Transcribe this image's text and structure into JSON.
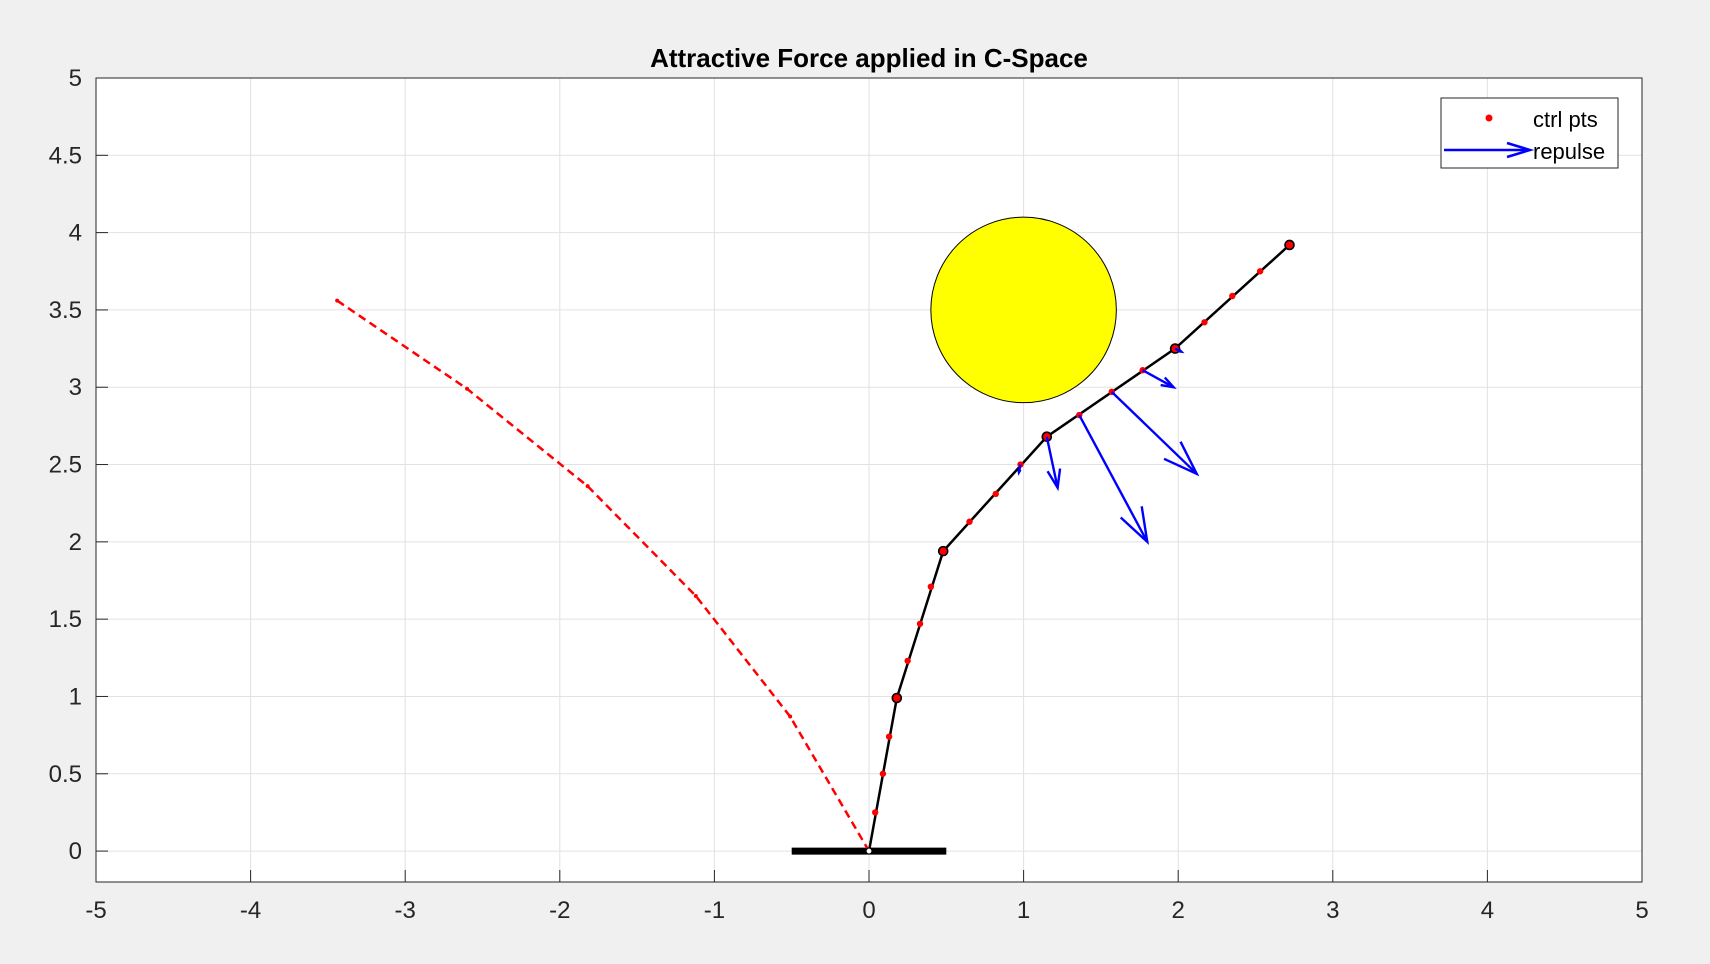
{
  "chart_data": {
    "type": "line",
    "title": "Attractive Force applied in C-Space",
    "xlabel": "",
    "ylabel": "",
    "xlim": [
      -5,
      5
    ],
    "ylim": [
      -0.2,
      5
    ],
    "xticks": [
      -5,
      -4,
      -3,
      -2,
      -1,
      0,
      1,
      2,
      3,
      4,
      5
    ],
    "yticks": [
      0,
      0.5,
      1,
      1.5,
      2,
      2.5,
      3,
      3.5,
      4,
      4.5,
      5
    ],
    "xtick_labels": [
      "-5",
      "-4",
      "-3",
      "-2",
      "-1",
      "0",
      "1",
      "2",
      "3",
      "4",
      "5"
    ],
    "ytick_labels": [
      "0",
      "0.5",
      "1",
      "1.5",
      "2",
      "2.5",
      "3",
      "3.5",
      "4",
      "4.5",
      "5"
    ],
    "grid": true,
    "legend_position": "top-right",
    "legend": [
      {
        "label": "ctrl pts",
        "marker": "dot",
        "color": "#ff0000"
      },
      {
        "label": "repulse",
        "marker": "arrow",
        "color": "#0000ff"
      }
    ],
    "base": {
      "x1": -0.5,
      "x2": 0.5,
      "y": 0,
      "color": "#000000"
    },
    "obstacle": {
      "cx": 1.0,
      "cy": 3.5,
      "r": 0.6,
      "fill": "#ffff00",
      "stroke": "#000000"
    },
    "arm": {
      "color": "#000000",
      "joints": [
        [
          0,
          0
        ],
        [
          0.18,
          0.99
        ],
        [
          0.48,
          1.94
        ],
        [
          1.15,
          2.68
        ],
        [
          1.98,
          3.25
        ],
        [
          2.72,
          3.92
        ]
      ]
    },
    "ctrl_pts": {
      "color": "#ff0000",
      "points": [
        [
          0.04,
          0.25
        ],
        [
          0.09,
          0.5
        ],
        [
          0.13,
          0.74
        ],
        [
          0.25,
          1.23
        ],
        [
          0.33,
          1.47
        ],
        [
          0.4,
          1.71
        ],
        [
          0.65,
          2.13
        ],
        [
          0.82,
          2.31
        ],
        [
          0.98,
          2.5
        ],
        [
          1.36,
          2.82
        ],
        [
          1.57,
          2.97
        ],
        [
          1.77,
          3.11
        ],
        [
          2.17,
          3.42
        ],
        [
          2.35,
          3.59
        ],
        [
          2.53,
          3.75
        ]
      ]
    },
    "repulse": {
      "color": "#0000ff",
      "vectors": [
        {
          "x": 0.98,
          "y": 2.5,
          "u": -0.01,
          "v": -0.05
        },
        {
          "x": 1.15,
          "y": 2.68,
          "u": 0.07,
          "v": -0.33
        },
        {
          "x": 1.36,
          "y": 2.82,
          "u": 0.44,
          "v": -0.82
        },
        {
          "x": 1.57,
          "y": 2.97,
          "u": 0.55,
          "v": -0.53
        },
        {
          "x": 1.77,
          "y": 3.11,
          "u": 0.2,
          "v": -0.11
        },
        {
          "x": 1.98,
          "y": 3.25,
          "u": 0.04,
          "v": -0.02
        }
      ]
    },
    "attractive_path": {
      "color": "#ff0000",
      "style": "dashed",
      "points": [
        [
          0,
          0
        ],
        [
          -0.51,
          0.87
        ],
        [
          -1.12,
          1.65
        ],
        [
          -1.82,
          2.36
        ],
        [
          -2.6,
          2.99
        ],
        [
          -3.44,
          3.56
        ]
      ]
    }
  }
}
